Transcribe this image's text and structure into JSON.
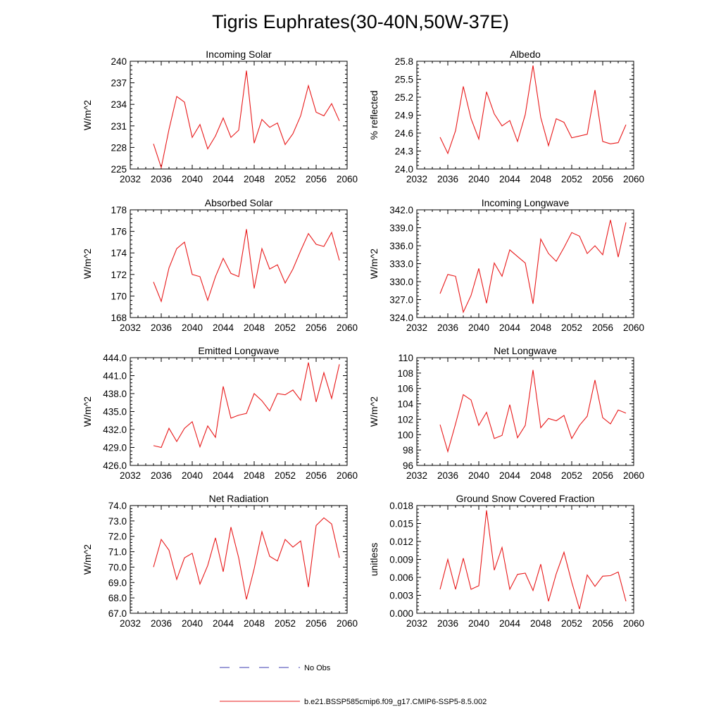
{
  "figure": {
    "title": "Tigris Euphrates(30-40N,50W-37E)"
  },
  "legend": {
    "entries": [
      {
        "label": "No Obs",
        "style": "dashed",
        "color": "#3b3bb0"
      },
      {
        "label": "b.e21.BSSP585cmip6.f09_g17.CMIP6-SSP5-8.5.002",
        "style": "solid",
        "color": "#e8191a"
      }
    ]
  },
  "chart_data": [
    {
      "type": "line",
      "title": "Incoming Solar",
      "ylabel": "W/m^2",
      "xlim": [
        2032,
        2060
      ],
      "xticks": [
        "2032",
        "2036",
        "2040",
        "2044",
        "2048",
        "2052",
        "2056",
        "2060"
      ],
      "ylim": [
        225,
        240
      ],
      "yticks": [
        "225",
        "228",
        "231",
        "234",
        "237",
        "240"
      ],
      "x": [
        2035,
        2036,
        2037,
        2038,
        2039,
        2040,
        2041,
        2042,
        2043,
        2044,
        2045,
        2046,
        2047,
        2048,
        2049,
        2050,
        2051,
        2052,
        2053,
        2054,
        2055,
        2056,
        2057,
        2058,
        2059
      ],
      "series": [
        {
          "color": "#e8191a",
          "values": [
            228.5,
            225.2,
            230.5,
            235.1,
            234.3,
            229.4,
            231.2,
            227.8,
            229.6,
            232.1,
            229.4,
            230.4,
            238.7,
            228.6,
            231.9,
            230.8,
            231.4,
            228.4,
            229.9,
            232.4,
            236.6,
            232.9,
            232.4,
            234.1,
            231.7
          ]
        }
      ]
    },
    {
      "type": "line",
      "title": "Albedo",
      "ylabel": "% reflected",
      "xlim": [
        2032,
        2060
      ],
      "xticks": [
        "2032",
        "2036",
        "2040",
        "2044",
        "2048",
        "2052",
        "2056",
        "2060"
      ],
      "ylim": [
        24.0,
        25.8
      ],
      "yticks": [
        "24.0",
        "24.3",
        "24.6",
        "24.9",
        "25.2",
        "25.5",
        "25.8"
      ],
      "x": [
        2035,
        2036,
        2037,
        2038,
        2039,
        2040,
        2041,
        2042,
        2043,
        2044,
        2045,
        2046,
        2047,
        2048,
        2049,
        2050,
        2051,
        2052,
        2053,
        2054,
        2055,
        2056,
        2057,
        2058,
        2059
      ],
      "series": [
        {
          "color": "#e8191a",
          "values": [
            24.53,
            24.26,
            24.64,
            25.38,
            24.84,
            24.5,
            25.29,
            24.92,
            24.72,
            24.81,
            24.46,
            24.91,
            25.73,
            24.86,
            24.39,
            24.84,
            24.78,
            24.52,
            24.55,
            24.58,
            25.32,
            24.46,
            24.42,
            24.44,
            24.74
          ]
        }
      ]
    },
    {
      "type": "line",
      "title": "Absorbed Solar",
      "ylabel": "W/m^2",
      "xlim": [
        2032,
        2060
      ],
      "xticks": [
        "2032",
        "2036",
        "2040",
        "2044",
        "2048",
        "2052",
        "2056",
        "2060"
      ],
      "ylim": [
        168,
        178
      ],
      "yticks": [
        "168",
        "170",
        "172",
        "174",
        "176",
        "178"
      ],
      "x": [
        2035,
        2036,
        2037,
        2038,
        2039,
        2040,
        2041,
        2042,
        2043,
        2044,
        2045,
        2046,
        2047,
        2048,
        2049,
        2050,
        2051,
        2052,
        2053,
        2054,
        2055,
        2056,
        2057,
        2058,
        2059
      ],
      "series": [
        {
          "color": "#e8191a",
          "values": [
            171.3,
            169.5,
            172.6,
            174.4,
            175.0,
            172.0,
            171.8,
            169.6,
            171.8,
            173.5,
            172.1,
            171.8,
            176.2,
            170.7,
            174.4,
            172.5,
            172.9,
            171.2,
            172.5,
            174.2,
            175.8,
            174.8,
            174.6,
            175.9,
            173.3
          ]
        }
      ]
    },
    {
      "type": "line",
      "title": "Incoming Longwave",
      "ylabel": "W/m^2",
      "xlim": [
        2032,
        2060
      ],
      "xticks": [
        "2032",
        "2036",
        "2040",
        "2044",
        "2048",
        "2052",
        "2056",
        "2060"
      ],
      "ylim": [
        324.0,
        342.0
      ],
      "yticks": [
        "324.0",
        "327.0",
        "330.0",
        "333.0",
        "336.0",
        "339.0",
        "342.0"
      ],
      "x": [
        2035,
        2036,
        2037,
        2038,
        2039,
        2040,
        2041,
        2042,
        2043,
        2044,
        2045,
        2046,
        2047,
        2048,
        2049,
        2050,
        2051,
        2052,
        2053,
        2054,
        2055,
        2056,
        2057,
        2058,
        2059
      ],
      "series": [
        {
          "color": "#e8191a",
          "values": [
            328.0,
            331.2,
            330.9,
            324.9,
            327.7,
            332.2,
            326.4,
            333.1,
            330.9,
            335.3,
            334.2,
            333.1,
            326.3,
            337.1,
            334.7,
            333.4,
            335.7,
            338.2,
            337.6,
            334.7,
            336.0,
            334.5,
            340.3,
            334.1,
            339.9
          ]
        }
      ]
    },
    {
      "type": "line",
      "title": "Emitted Longwave",
      "ylabel": "W/m^2",
      "xlim": [
        2032,
        2060
      ],
      "xticks": [
        "2032",
        "2036",
        "2040",
        "2044",
        "2048",
        "2052",
        "2056",
        "2060"
      ],
      "ylim": [
        426.0,
        444.0
      ],
      "yticks": [
        "426.0",
        "429.0",
        "432.0",
        "435.0",
        "438.0",
        "441.0",
        "444.0"
      ],
      "x": [
        2035,
        2036,
        2037,
        2038,
        2039,
        2040,
        2041,
        2042,
        2043,
        2044,
        2045,
        2046,
        2047,
        2048,
        2049,
        2050,
        2051,
        2052,
        2053,
        2054,
        2055,
        2056,
        2057,
        2058,
        2059
      ],
      "series": [
        {
          "color": "#e8191a",
          "values": [
            429.3,
            429.0,
            432.2,
            430.0,
            432.2,
            433.3,
            429.1,
            432.6,
            430.7,
            439.2,
            433.9,
            434.4,
            434.7,
            438.0,
            436.8,
            435.1,
            438.0,
            437.8,
            438.6,
            436.9,
            443.2,
            436.6,
            441.5,
            437.2,
            442.9
          ]
        }
      ]
    },
    {
      "type": "line",
      "title": "Net Longwave",
      "ylabel": "W/m^2",
      "xlim": [
        2032,
        2060
      ],
      "xticks": [
        "2032",
        "2036",
        "2040",
        "2044",
        "2048",
        "2052",
        "2056",
        "2060"
      ],
      "ylim": [
        96,
        110
      ],
      "yticks": [
        "96",
        "98",
        "100",
        "102",
        "104",
        "106",
        "108",
        "110"
      ],
      "x": [
        2035,
        2036,
        2037,
        2038,
        2039,
        2040,
        2041,
        2042,
        2043,
        2044,
        2045,
        2046,
        2047,
        2048,
        2049,
        2050,
        2051,
        2052,
        2053,
        2054,
        2055,
        2056,
        2057,
        2058,
        2059
      ],
      "series": [
        {
          "color": "#e8191a",
          "values": [
            101.3,
            97.8,
            101.4,
            105.2,
            104.5,
            101.2,
            102.9,
            99.5,
            99.9,
            103.9,
            99.6,
            101.2,
            108.4,
            100.9,
            102.1,
            101.8,
            102.5,
            99.5,
            101.2,
            102.4,
            107.1,
            102.2,
            101.4,
            103.2,
            102.8
          ]
        }
      ]
    },
    {
      "type": "line",
      "title": "Net Radiation",
      "ylabel": "W/m^2",
      "xlim": [
        2032,
        2060
      ],
      "xticks": [
        "2032",
        "2036",
        "2040",
        "2044",
        "2048",
        "2052",
        "2056",
        "2060"
      ],
      "ylim": [
        67.0,
        74.0
      ],
      "yticks": [
        "67.0",
        "68.0",
        "69.0",
        "70.0",
        "71.0",
        "72.0",
        "73.0",
        "74.0"
      ],
      "x": [
        2035,
        2036,
        2037,
        2038,
        2039,
        2040,
        2041,
        2042,
        2043,
        2044,
        2045,
        2046,
        2047,
        2048,
        2049,
        2050,
        2051,
        2052,
        2053,
        2054,
        2055,
        2056,
        2057,
        2058,
        2059
      ],
      "series": [
        {
          "color": "#e8191a",
          "values": [
            70.0,
            71.8,
            71.1,
            69.2,
            70.6,
            70.9,
            68.9,
            70.1,
            71.9,
            69.7,
            72.6,
            70.6,
            67.9,
            69.9,
            72.3,
            70.7,
            70.4,
            71.8,
            71.3,
            71.7,
            68.7,
            72.7,
            73.2,
            72.8,
            70.6
          ]
        }
      ]
    },
    {
      "type": "line",
      "title": "Ground Snow Covered Fraction",
      "ylabel": "unitless",
      "xlim": [
        2032,
        2060
      ],
      "xticks": [
        "2032",
        "2036",
        "2040",
        "2044",
        "2048",
        "2052",
        "2056",
        "2060"
      ],
      "ylim": [
        0.0,
        0.018
      ],
      "yticks": [
        "0.000",
        "0.003",
        "0.006",
        "0.009",
        "0.012",
        "0.015",
        "0.018"
      ],
      "x": [
        2035,
        2036,
        2037,
        2038,
        2039,
        2040,
        2041,
        2042,
        2043,
        2044,
        2045,
        2046,
        2047,
        2048,
        2049,
        2050,
        2051,
        2052,
        2053,
        2054,
        2055,
        2056,
        2057,
        2058,
        2059
      ],
      "series": [
        {
          "color": "#e8191a",
          "values": [
            0.004,
            0.009,
            0.004,
            0.0092,
            0.004,
            0.0046,
            0.0172,
            0.0072,
            0.011,
            0.004,
            0.0065,
            0.0067,
            0.0038,
            0.0082,
            0.002,
            0.0066,
            0.0102,
            0.0052,
            0.0007,
            0.0064,
            0.0045,
            0.0062,
            0.0063,
            0.0069,
            0.002
          ]
        }
      ]
    }
  ]
}
